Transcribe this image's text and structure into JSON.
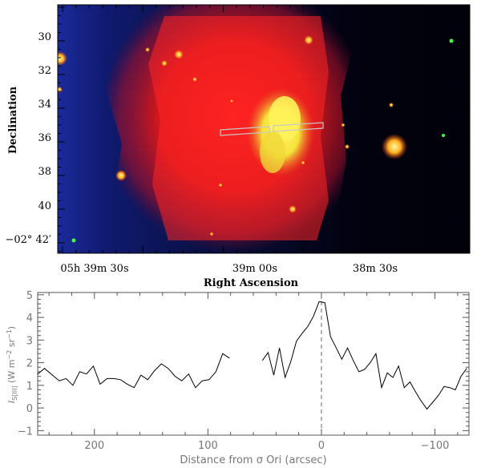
{
  "top_panel": {
    "xlabel": "Right Ascension",
    "ylabel": "Declination",
    "dec_ticks": [
      {
        "value": 30,
        "label": "30"
      },
      {
        "value": 32,
        "label": "32"
      },
      {
        "value": 34,
        "label": "34"
      },
      {
        "value": 36,
        "label": "36"
      },
      {
        "value": 38,
        "label": "38"
      },
      {
        "value": 40,
        "label": "40"
      },
      {
        "value": 42,
        "label": "−02° 42′"
      }
    ],
    "ra_ticks": [
      {
        "value": "05h 39m 30s",
        "label": "05h 39m 30s"
      },
      {
        "value": "39m 00s",
        "label": "39m 00s"
      },
      {
        "value": "38m 30s",
        "label": "38m 30s"
      }
    ]
  },
  "chart_data": {
    "type": "line",
    "xlabel": "Distance from σ Ori (arcsec)",
    "ylabel": "I_S[III] (W m^-2 sr^-1)",
    "xlim": [
      250,
      -130
    ],
    "ylim": [
      -1.2,
      5.1
    ],
    "xticks": [
      200,
      100,
      0,
      -100
    ],
    "yticks": [
      -1,
      0,
      1,
      2,
      3,
      4,
      5
    ],
    "reference_line_x": 0,
    "series": [
      {
        "x": [
          250,
          244,
          237,
          231,
          225,
          219,
          213,
          207,
          201,
          195,
          189,
          183,
          177,
          171,
          165,
          159,
          153,
          147,
          141,
          135,
          129,
          123,
          117,
          111,
          105,
          99,
          93,
          87,
          81
        ],
        "y": [
          1.5,
          1.75,
          1.45,
          1.2,
          1.3,
          1.0,
          1.6,
          1.5,
          1.85,
          1.05,
          1.3,
          1.3,
          1.25,
          1.05,
          0.9,
          1.45,
          1.25,
          1.65,
          1.95,
          1.75,
          1.4,
          1.2,
          1.5,
          0.9,
          1.2,
          1.25,
          1.6,
          2.4,
          2.2
        ]
      },
      {
        "x": [
          52,
          47,
          42,
          37,
          32,
          27,
          22,
          17,
          12,
          7,
          2,
          -3,
          -8,
          -13,
          -18,
          -23,
          -28,
          -33,
          -38,
          -43,
          -48,
          -53,
          -58,
          -63,
          -68,
          -73,
          -78,
          -83,
          -88,
          -93,
          -98,
          -103,
          -108,
          -113,
          -118,
          -123,
          -128
        ],
        "y": [
          2.1,
          2.45,
          1.45,
          2.65,
          1.35,
          2.05,
          2.95,
          3.3,
          3.6,
          4.05,
          4.7,
          4.65,
          3.15,
          2.65,
          2.15,
          2.65,
          2.1,
          1.6,
          1.7,
          2.0,
          2.4,
          0.9,
          1.55,
          1.35,
          1.85,
          0.9,
          1.15,
          0.7,
          0.3,
          -0.05,
          0.25,
          0.55,
          0.95,
          0.9,
          0.8,
          1.4,
          1.75
        ]
      }
    ]
  }
}
